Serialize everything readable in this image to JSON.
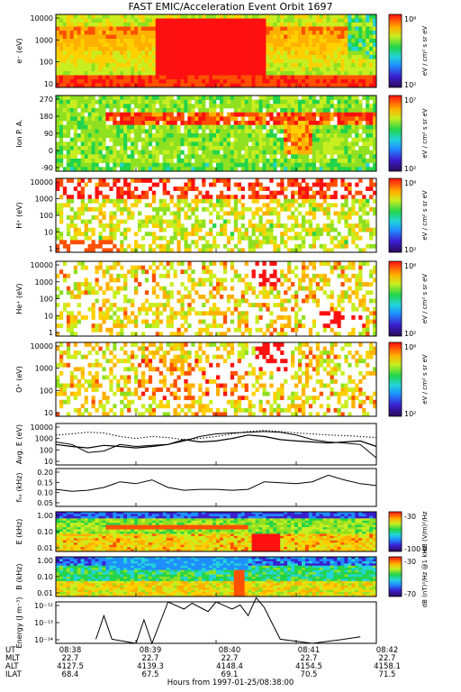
{
  "title": "FAST EMIC/Acceleration Event Orbit 1697",
  "x_axis": {
    "ticks": [
      "08:38",
      "08:39",
      "08:40",
      "08:41",
      "08:42"
    ],
    "row_labels": [
      "UT",
      "MLT",
      "ALT",
      "ILAT"
    ],
    "rows": {
      "MLT": [
        "22.7",
        "22.7",
        "22.7",
        "22.7",
        "22.7"
      ],
      "ALT": [
        "4127.5",
        "4139.3",
        "4148.4",
        "4154.5",
        "4158.1"
      ],
      "ILAT": [
        "68.4",
        "67.5",
        "69.1",
        "70.5",
        "71.5"
      ]
    },
    "label": "Hours from 1997-01-25/08:38:00"
  },
  "chart_data": [
    {
      "type": "heatmap",
      "panel": "electron-energy",
      "ylabel": "e⁻ (eV)",
      "scale": "log",
      "yticks": [
        "10000",
        "1000",
        "100",
        "10"
      ],
      "colorbar": {
        "label": "eV / cm² s sr eV",
        "max": "10⁸",
        "min": "10²"
      }
    },
    {
      "type": "heatmap",
      "panel": "ion-pitch-angle",
      "ylabel": "Ion P. A.",
      "yticks": [
        "270",
        "180",
        "90",
        "0",
        "-90"
      ],
      "colorbar": {
        "label": "eV / cm² s sr eV",
        "max": "10⁷",
        "min": "10²"
      }
    },
    {
      "type": "heatmap",
      "panel": "h-plus-energy",
      "ylabel": "H⁺ (eV)",
      "scale": "log",
      "yticks": [
        "10000",
        "1000",
        "100",
        "10",
        "1"
      ],
      "colorbar": {
        "label": "eV / cm² s sr eV",
        "max": "10⁶",
        "min": "10²"
      }
    },
    {
      "type": "heatmap",
      "panel": "he-plus-energy",
      "ylabel": "He⁺ (eV)",
      "scale": "log",
      "yticks": [
        "10000",
        "1000",
        "100",
        "10",
        "1"
      ],
      "colorbar": {
        "label": "eV / cm² s sr eV",
        "max": "10⁶",
        "min": "10²"
      }
    },
    {
      "type": "heatmap",
      "panel": "o-plus-energy",
      "ylabel": "O⁺ (eV)",
      "scale": "log",
      "yticks": [
        "10000",
        "1000",
        "100",
        "10"
      ],
      "colorbar": {
        "label": "eV / cm² s sr eV",
        "max": "10⁶",
        "min": "10²"
      }
    },
    {
      "type": "line",
      "panel": "average-energy",
      "ylabel": "Avg. E (eV)",
      "scale": "log",
      "yticks": [
        "10000",
        "1000",
        "100",
        "10"
      ],
      "x_minutes": [
        0,
        0.2,
        0.4,
        0.6,
        0.8,
        1.0,
        1.2,
        1.4,
        1.6,
        1.8,
        2.0,
        2.2,
        2.4,
        2.6,
        2.8,
        3.0,
        3.2,
        3.4,
        3.6,
        3.8,
        4.0
      ],
      "series": [
        {
          "values": [
            500,
            300,
            60,
            80,
            300,
            200,
            250,
            300,
            600,
            1500,
            2500,
            3000,
            3500,
            4000,
            3500,
            2000,
            800,
            500,
            400,
            300,
            20
          ]
        },
        {
          "values": [
            300,
            200,
            150,
            250,
            200,
            150,
            200,
            300,
            800,
            500,
            600,
            1000,
            2000,
            1500,
            800,
            600,
            500,
            400,
            500,
            600,
            200
          ]
        },
        {
          "values": [
            2000,
            2500,
            3500,
            3000,
            1500,
            1000,
            1500,
            1200,
            800,
            1000,
            1500,
            2500,
            4000,
            5000,
            4000,
            3000,
            2500,
            2000,
            1800,
            1500,
            1200
          ]
        }
      ]
    },
    {
      "type": "line",
      "panel": "he-gyrofrequency",
      "ylabel": "fₕₑ (kHz)",
      "yticks": [
        "0.20",
        "0.15",
        "0.10",
        "0.05"
      ],
      "ylim": [
        0.0,
        0.2
      ],
      "x_minutes": [
        0,
        0.2,
        0.4,
        0.6,
        0.8,
        1.0,
        1.2,
        1.4,
        1.6,
        1.8,
        2.0,
        2.2,
        2.4,
        2.6,
        2.8,
        3.0,
        3.2,
        3.4,
        3.6,
        3.8,
        4.0
      ],
      "series": [
        {
          "values": [
            0.09,
            0.08,
            0.085,
            0.1,
            0.13,
            0.12,
            0.14,
            0.1,
            0.085,
            0.09,
            0.09,
            0.085,
            0.09,
            0.13,
            0.125,
            0.12,
            0.13,
            0.165,
            0.14,
            0.12,
            0.11
          ]
        }
      ]
    },
    {
      "type": "heatmap",
      "panel": "e-field-spectrogram",
      "ylabel": "E (kHz)",
      "scale": "log",
      "yticks": [
        "1.00",
        "0.10",
        "0.01"
      ],
      "colorbar": {
        "label": "dB (V/m)²/Hz",
        "max": "-30",
        "min": "-100"
      }
    },
    {
      "type": "heatmap",
      "panel": "b-field-spectrogram",
      "ylabel": "B (kHz)",
      "scale": "log",
      "yticks": [
        "1.00",
        "0.10",
        "0.01"
      ],
      "colorbar": {
        "label": "dB (nT)²/Hz @1 kHz",
        "max": "-30",
        "min": "-70"
      }
    },
    {
      "type": "line",
      "panel": "poynting-energy",
      "ylabel": "Energy (J m⁻³)",
      "scale": "log",
      "yticks": [
        "10⁻¹²",
        "10⁻¹³",
        "10⁻¹⁴"
      ],
      "x_minutes": [
        0.5,
        0.6,
        0.7,
        1.0,
        1.1,
        1.2,
        1.4,
        1.6,
        1.7,
        1.9,
        2.0,
        2.2,
        2.3,
        2.4,
        2.5,
        2.6,
        2.8,
        3.2,
        3.6,
        3.8
      ],
      "series": [
        {
          "values": [
            2e-15,
            1e-13,
            2e-15,
            1e-15,
            5e-14,
            1e-15,
            1e-12,
            3e-13,
            8e-13,
            2e-13,
            1e-12,
            3e-13,
            6e-13,
            1e-13,
            2e-12,
            4e-13,
            2e-15,
            1e-15,
            2e-15,
            3e-15
          ]
        }
      ]
    }
  ]
}
